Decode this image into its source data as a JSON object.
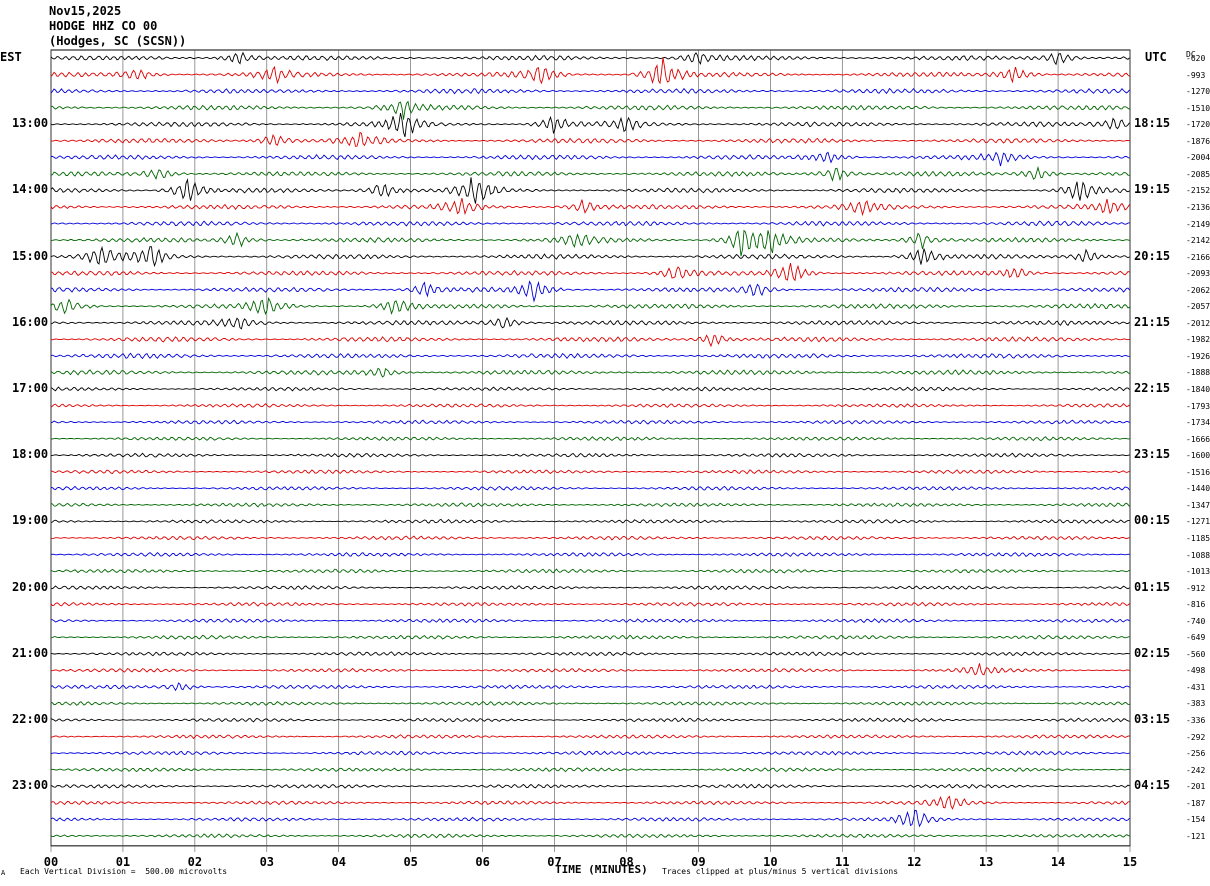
{
  "header": {
    "date": "Nov15,2025",
    "station": "HODGE HHZ CO 00",
    "location": "(Hodges, SC (SCSN))"
  },
  "left_axis_label": "EST",
  "right_axis_label": "UTC",
  "dc_label": "DC",
  "footer": {
    "scale_note": "Each Vertical Division =  500.00 microvolts",
    "xlabel": "TIME (MINUTES)",
    "clip_note": "Traces clipped at plus/minus 5 vertical divisions",
    "corner_mark": "A"
  },
  "chart_data": {
    "type": "line",
    "title": "HODGE HHZ CO 00",
    "xlabel": "TIME (MINUTES)",
    "x_ticks": [
      "00",
      "01",
      "02",
      "03",
      "04",
      "05",
      "06",
      "07",
      "08",
      "09",
      "10",
      "11",
      "12",
      "13",
      "14",
      "15"
    ],
    "xlim": [
      0,
      15
    ],
    "est_labels": [
      "13:00",
      "14:00",
      "15:00",
      "16:00",
      "17:00",
      "18:00",
      "19:00",
      "20:00",
      "21:00",
      "22:00",
      "23:00"
    ],
    "utc_labels": [
      "18:15",
      "19:15",
      "20:15",
      "21:15",
      "22:15",
      "23:15",
      "00:15",
      "01:15",
      "02:15",
      "03:15",
      "04:15"
    ],
    "trace_colors": [
      "#000000",
      "#dd0000",
      "#0000dd",
      "#006600"
    ],
    "dc_offsets": [
      "-620",
      "-993",
      "-1270",
      "-1510",
      "-1720",
      "-1876",
      "-2004",
      "-2085",
      "-2152",
      "-2136",
      "-2149",
      "-2142",
      "-2166",
      "-2093",
      "-2062",
      "-2057",
      "-2012",
      "-1982",
      "-1926",
      "-1888",
      "-1840",
      "-1793",
      "-1734",
      "-1666",
      "-1600",
      "-1516",
      "-1440",
      "-1347",
      "-1271",
      "-1185",
      "-1088",
      "-1013",
      "-912",
      "-816",
      "-740",
      "-649",
      "-560",
      "-498",
      "-431",
      "-383",
      "-336",
      "-292",
      "-256",
      "-242",
      "-201",
      "-187",
      "-154",
      "-121"
    ],
    "trace_count": 48,
    "events": [
      {
        "trace": 0,
        "minute": 2.6,
        "amp": 2.0
      },
      {
        "trace": 0,
        "minute": 9.0,
        "amp": 2.0
      },
      {
        "trace": 0,
        "minute": 14.0,
        "amp": 2.0
      },
      {
        "trace": 1,
        "minute": 1.2,
        "amp": 2.0
      },
      {
        "trace": 1,
        "minute": 3.1,
        "amp": 2.2
      },
      {
        "trace": 1,
        "minute": 6.8,
        "amp": 2.5
      },
      {
        "trace": 1,
        "minute": 8.5,
        "amp": 5.0
      },
      {
        "trace": 1,
        "minute": 13.4,
        "amp": 2.4
      },
      {
        "trace": 3,
        "minute": 4.9,
        "amp": 2.5
      },
      {
        "trace": 4,
        "minute": 4.9,
        "amp": 4.0
      },
      {
        "trace": 4,
        "minute": 7.0,
        "amp": 2.5
      },
      {
        "trace": 4,
        "minute": 8.0,
        "amp": 2.0
      },
      {
        "trace": 4,
        "minute": 14.8,
        "amp": 2.0
      },
      {
        "trace": 5,
        "minute": 3.1,
        "amp": 2.0
      },
      {
        "trace": 5,
        "minute": 4.3,
        "amp": 2.0
      },
      {
        "trace": 6,
        "minute": 10.8,
        "amp": 2.0
      },
      {
        "trace": 6,
        "minute": 13.2,
        "amp": 1.8
      },
      {
        "trace": 7,
        "minute": 1.5,
        "amp": 1.8
      },
      {
        "trace": 7,
        "minute": 10.9,
        "amp": 2.2
      },
      {
        "trace": 7,
        "minute": 13.7,
        "amp": 2.0
      },
      {
        "trace": 8,
        "minute": 1.9,
        "amp": 3.5
      },
      {
        "trace": 8,
        "minute": 4.6,
        "amp": 2.5
      },
      {
        "trace": 8,
        "minute": 5.9,
        "amp": 4.5
      },
      {
        "trace": 8,
        "minute": 14.3,
        "amp": 3.0
      },
      {
        "trace": 9,
        "minute": 5.7,
        "amp": 2.0
      },
      {
        "trace": 9,
        "minute": 7.4,
        "amp": 2.0
      },
      {
        "trace": 9,
        "minute": 11.3,
        "amp": 2.0
      },
      {
        "trace": 9,
        "minute": 14.7,
        "amp": 1.8
      },
      {
        "trace": 11,
        "minute": 2.6,
        "amp": 2.0
      },
      {
        "trace": 11,
        "minute": 7.3,
        "amp": 2.0
      },
      {
        "trace": 11,
        "minute": 9.6,
        "amp": 5.0
      },
      {
        "trace": 11,
        "minute": 10.0,
        "amp": 3.5
      },
      {
        "trace": 11,
        "minute": 12.1,
        "amp": 2.5
      },
      {
        "trace": 12,
        "minute": 0.7,
        "amp": 3.0
      },
      {
        "trace": 12,
        "minute": 1.4,
        "amp": 3.0
      },
      {
        "trace": 12,
        "minute": 12.1,
        "amp": 2.8
      },
      {
        "trace": 12,
        "minute": 14.4,
        "amp": 2.0
      },
      {
        "trace": 13,
        "minute": 8.7,
        "amp": 2.5
      },
      {
        "trace": 13,
        "minute": 10.3,
        "amp": 3.0
      },
      {
        "trace": 13,
        "minute": 13.4,
        "amp": 2.0
      },
      {
        "trace": 14,
        "minute": 5.2,
        "amp": 2.2
      },
      {
        "trace": 14,
        "minute": 6.7,
        "amp": 3.2
      },
      {
        "trace": 14,
        "minute": 9.8,
        "amp": 2.0
      },
      {
        "trace": 15,
        "minute": 0.2,
        "amp": 2.0
      },
      {
        "trace": 15,
        "minute": 3.0,
        "amp": 2.8
      },
      {
        "trace": 15,
        "minute": 4.8,
        "amp": 2.5
      },
      {
        "trace": 16,
        "minute": 2.6,
        "amp": 1.8
      },
      {
        "trace": 16,
        "minute": 6.3,
        "amp": 1.8
      },
      {
        "trace": 17,
        "minute": 9.2,
        "amp": 2.0
      },
      {
        "trace": 19,
        "minute": 4.6,
        "amp": 1.8
      },
      {
        "trace": 37,
        "minute": 12.9,
        "amp": 1.6
      },
      {
        "trace": 38,
        "minute": 1.8,
        "amp": 1.4
      },
      {
        "trace": 45,
        "minute": 12.5,
        "amp": 2.6
      },
      {
        "trace": 46,
        "minute": 12.0,
        "amp": 3.0
      }
    ]
  }
}
